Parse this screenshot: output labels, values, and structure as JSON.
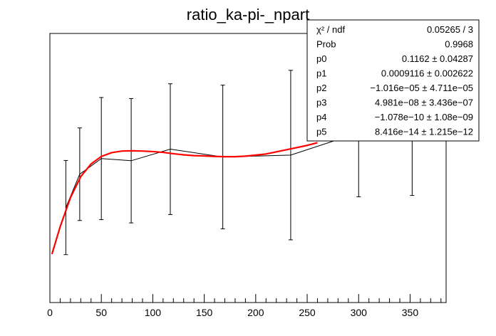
{
  "chart_data": {
    "type": "line",
    "title": "ratio_ka-pi-_npart",
    "xlabel": "",
    "ylabel": "",
    "xlim": [
      0,
      385
    ],
    "ylim": [
      0.0,
      1.0
    ],
    "x_ticks": [
      0,
      50,
      100,
      150,
      200,
      250,
      300,
      350
    ],
    "x_tick_labels": [
      "0",
      "50",
      "100",
      "150",
      "200",
      "250",
      "300",
      "350"
    ],
    "grid": false,
    "series": [
      {
        "kind": "data-with-errors",
        "color": "#000000",
        "x": [
          15.5,
          29,
          50,
          79,
          117,
          168,
          234,
          300,
          352
        ],
        "y": [
          0.353,
          0.477,
          0.535,
          0.527,
          0.57,
          0.541,
          0.548,
          0.631,
          0.641
        ],
        "err": [
          0.175,
          0.172,
          0.227,
          0.231,
          0.243,
          0.267,
          0.315,
          0.238,
          0.243
        ]
      },
      {
        "kind": "fit",
        "color": "#ff0000",
        "x": [
          2,
          10,
          20,
          30,
          40,
          50,
          60,
          70,
          80,
          90,
          100,
          110,
          120,
          130,
          140,
          150,
          160,
          170,
          180,
          190,
          200,
          210,
          220,
          230,
          240,
          250,
          260
        ],
        "y": [
          0.18,
          0.282,
          0.39,
          0.468,
          0.515,
          0.543,
          0.557,
          0.563,
          0.564,
          0.563,
          0.561,
          0.558,
          0.553,
          0.549,
          0.546,
          0.545,
          0.543,
          0.542,
          0.542,
          0.544,
          0.548,
          0.552,
          0.56,
          0.568,
          0.576,
          0.584,
          0.594
        ]
      }
    ],
    "stats_box": {
      "rows": [
        {
          "label": "χ² / ndf",
          "value": "0.05265 / 3"
        },
        {
          "label": "Prob",
          "value": "0.9968"
        },
        {
          "label": "p0",
          "value": "0.1162  ± 0.04287"
        },
        {
          "label": "p1",
          "value": "0.0009116  ± 0.002622"
        },
        {
          "label": "p2",
          "value": "−1.016e−05 ± 4.711e−05"
        },
        {
          "label": "p3",
          "value": "4.981e−08 ± 3.436e−07"
        },
        {
          "label": "p4",
          "value": "−1.078e−10 ± 1.08e−09"
        },
        {
          "label": "p5",
          "value": "8.416e−14 ± 1.215e−12"
        }
      ]
    }
  }
}
